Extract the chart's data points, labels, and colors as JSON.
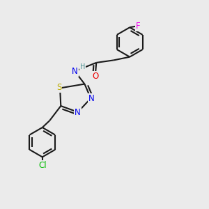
{
  "background_color": "#ebebeb",
  "bond_color": "#1a1a1a",
  "bond_width": 1.5,
  "atom_colors": {
    "N": "#0000ee",
    "O": "#ee0000",
    "S": "#bbaa00",
    "Cl": "#00bb00",
    "F": "#ee00ee",
    "H": "#4a9090",
    "C": "#1a1a1a"
  },
  "font_size": 8.5,
  "fig_width": 3.0,
  "fig_height": 3.0,
  "dpi": 100,
  "xlim": [
    0,
    10
  ],
  "ylim": [
    0,
    10
  ]
}
